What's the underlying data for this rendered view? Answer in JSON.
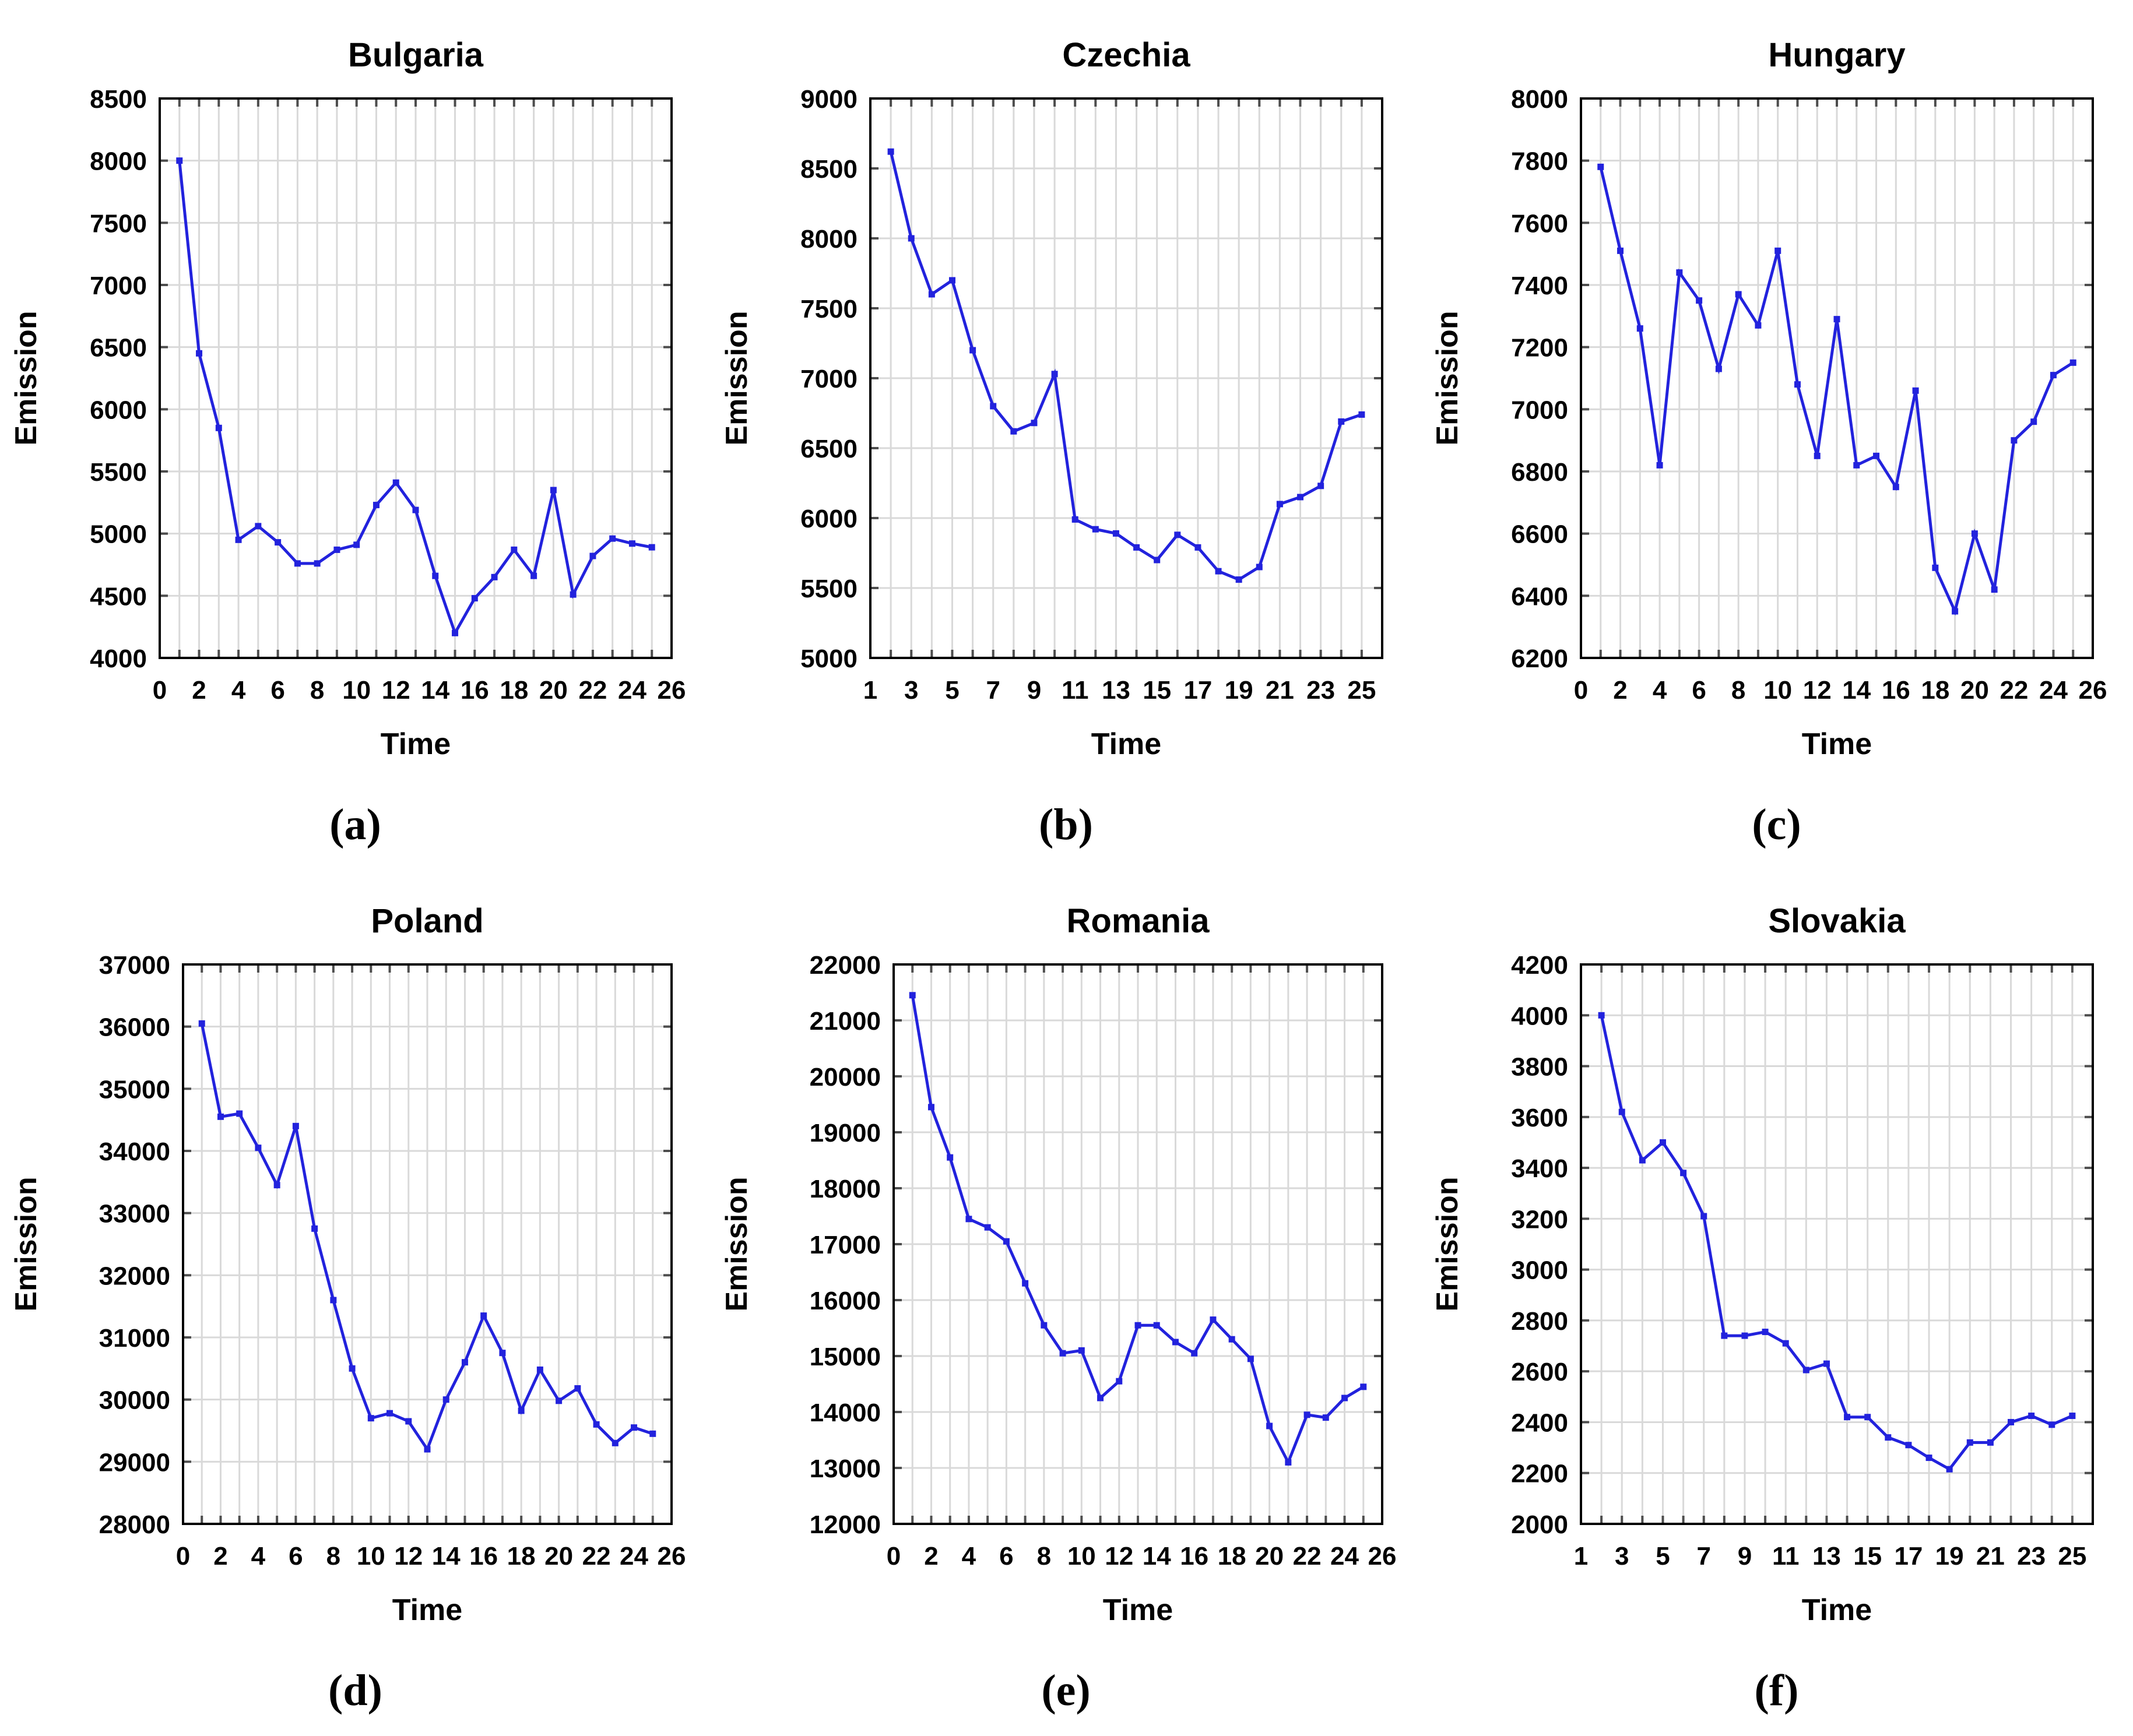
{
  "style": {
    "background_color": "#ffffff",
    "line_color": "#2222dd",
    "marker_color": "#2222dd",
    "grid_color": "#d9d9d9",
    "frame_color": "#000000",
    "tick_mark_color": "#4d4d4d",
    "text_color": "#000000",
    "legend": "none"
  },
  "chart_data": [
    {
      "type": "line",
      "title": "Bulgaria",
      "panel_label": "(a)",
      "xlabel": "Time",
      "ylabel": "Emission",
      "xlim": [
        0,
        26
      ],
      "ylim": [
        4000,
        8500
      ],
      "xticks": [
        0,
        2,
        4,
        6,
        8,
        10,
        12,
        14,
        16,
        18,
        20,
        22,
        24,
        26
      ],
      "yticks": [
        4000,
        4500,
        5000,
        5500,
        6000,
        6500,
        7000,
        7500,
        8000,
        8500
      ],
      "grid": true,
      "x": [
        1,
        2,
        3,
        4,
        5,
        6,
        7,
        8,
        9,
        10,
        11,
        12,
        13,
        14,
        15,
        16,
        17,
        18,
        19,
        20,
        21,
        22,
        23,
        24,
        25
      ],
      "y": [
        8000,
        6450,
        5850,
        4950,
        5060,
        4930,
        4760,
        4760,
        4870,
        4910,
        5230,
        5410,
        5190,
        4660,
        4200,
        4480,
        4650,
        4870,
        4660,
        5350,
        4510,
        4820,
        4960,
        4920,
        4890
      ]
    },
    {
      "type": "line",
      "title": "Czechia",
      "panel_label": "(b)",
      "xlabel": "Time",
      "ylabel": "Emission",
      "xlim": [
        1,
        26
      ],
      "ylim": [
        5000,
        9000
      ],
      "xticks": [
        1,
        3,
        5,
        7,
        9,
        11,
        13,
        15,
        17,
        19,
        21,
        23,
        25
      ],
      "yticks": [
        5000,
        5500,
        6000,
        6500,
        7000,
        7500,
        8000,
        8500,
        9000
      ],
      "grid": true,
      "x": [
        2,
        3,
        4,
        5,
        6,
        7,
        8,
        9,
        10,
        11,
        12,
        13,
        14,
        15,
        16,
        17,
        18,
        19,
        20,
        21,
        22,
        23,
        24,
        25
      ],
      "y": [
        8620,
        8000,
        7600,
        7700,
        7200,
        6800,
        6620,
        6680,
        7030,
        5990,
        5920,
        5890,
        5790,
        5700,
        5880,
        5790,
        5620,
        5560,
        5650,
        6100,
        6150,
        6230,
        6690,
        6740
      ]
    },
    {
      "type": "line",
      "title": "Hungary",
      "panel_label": "(c)",
      "xlabel": "Time",
      "ylabel": "Emission",
      "xlim": [
        0,
        26
      ],
      "ylim": [
        6200,
        8000
      ],
      "xticks": [
        0,
        2,
        4,
        6,
        8,
        10,
        12,
        14,
        16,
        18,
        20,
        22,
        24,
        26
      ],
      "yticks": [
        6200,
        6400,
        6600,
        6800,
        7000,
        7200,
        7400,
        7600,
        7800,
        8000
      ],
      "grid": true,
      "x": [
        1,
        2,
        3,
        4,
        5,
        6,
        7,
        8,
        9,
        10,
        11,
        12,
        13,
        14,
        15,
        16,
        17,
        18,
        19,
        20,
        21,
        22,
        23,
        24,
        25
      ],
      "y": [
        7780,
        7510,
        7260,
        6820,
        7440,
        7350,
        7130,
        7370,
        7270,
        7510,
        7080,
        6850,
        7290,
        6820,
        6850,
        6750,
        7060,
        6490,
        6350,
        6600,
        6420,
        6900,
        6960,
        7110,
        7150
      ]
    },
    {
      "type": "line",
      "title": "Poland",
      "panel_label": "(d)",
      "xlabel": "Time",
      "ylabel": "Emission",
      "xlim": [
        0,
        26
      ],
      "ylim": [
        28000,
        37000
      ],
      "xticks": [
        0,
        2,
        4,
        6,
        8,
        10,
        12,
        14,
        16,
        18,
        20,
        22,
        24,
        26
      ],
      "yticks": [
        28000,
        29000,
        30000,
        31000,
        32000,
        33000,
        34000,
        35000,
        36000,
        37000
      ],
      "grid": true,
      "x": [
        1,
        2,
        3,
        4,
        5,
        6,
        7,
        8,
        9,
        10,
        11,
        12,
        13,
        14,
        15,
        16,
        17,
        18,
        19,
        20,
        21,
        22,
        23,
        24,
        25
      ],
      "y": [
        36050,
        34550,
        34600,
        34050,
        33450,
        34400,
        32750,
        31600,
        30500,
        29700,
        29780,
        29650,
        29200,
        30000,
        30600,
        31350,
        30750,
        29820,
        30480,
        29980,
        30180,
        29600,
        29300,
        29550,
        29450
      ]
    },
    {
      "type": "line",
      "title": "Romania",
      "panel_label": "(e)",
      "xlabel": "Time",
      "ylabel": "Emission",
      "xlim": [
        0,
        26
      ],
      "ylim": [
        12000,
        22000
      ],
      "xticks": [
        0,
        2,
        4,
        6,
        8,
        10,
        12,
        14,
        16,
        18,
        20,
        22,
        24,
        26
      ],
      "yticks": [
        12000,
        13000,
        14000,
        15000,
        16000,
        17000,
        18000,
        19000,
        20000,
        21000,
        22000
      ],
      "grid": true,
      "x": [
        1,
        2,
        3,
        4,
        5,
        6,
        7,
        8,
        9,
        10,
        11,
        12,
        13,
        14,
        15,
        16,
        17,
        18,
        19,
        20,
        21,
        22,
        23,
        24,
        25
      ],
      "y": [
        21450,
        19450,
        18550,
        17450,
        17300,
        17050,
        16300,
        15550,
        15050,
        15100,
        14250,
        14550,
        15550,
        15550,
        15250,
        15050,
        15650,
        15300,
        14950,
        13750,
        13100,
        13950,
        13900,
        14250,
        14450
      ]
    },
    {
      "type": "line",
      "title": "Slovakia",
      "panel_label": "(f)",
      "xlabel": "Time",
      "ylabel": "Emission",
      "xlim": [
        1,
        26
      ],
      "ylim": [
        2000,
        4200
      ],
      "xticks": [
        1,
        3,
        5,
        7,
        9,
        11,
        13,
        15,
        17,
        19,
        21,
        23,
        25
      ],
      "yticks": [
        2000,
        2200,
        2400,
        2600,
        2800,
        3000,
        3200,
        3400,
        3600,
        3800,
        4000,
        4200
      ],
      "grid": true,
      "x": [
        2,
        3,
        4,
        5,
        6,
        7,
        8,
        9,
        10,
        11,
        12,
        13,
        14,
        15,
        16,
        17,
        18,
        19,
        20,
        21,
        22,
        23,
        24,
        25
      ],
      "y": [
        4000,
        3620,
        3430,
        3500,
        3380,
        3210,
        2740,
        2740,
        2755,
        2710,
        2605,
        2630,
        2420,
        2420,
        2340,
        2310,
        2260,
        2215,
        2320,
        2320,
        2400,
        2425,
        2390,
        2425
      ]
    }
  ]
}
